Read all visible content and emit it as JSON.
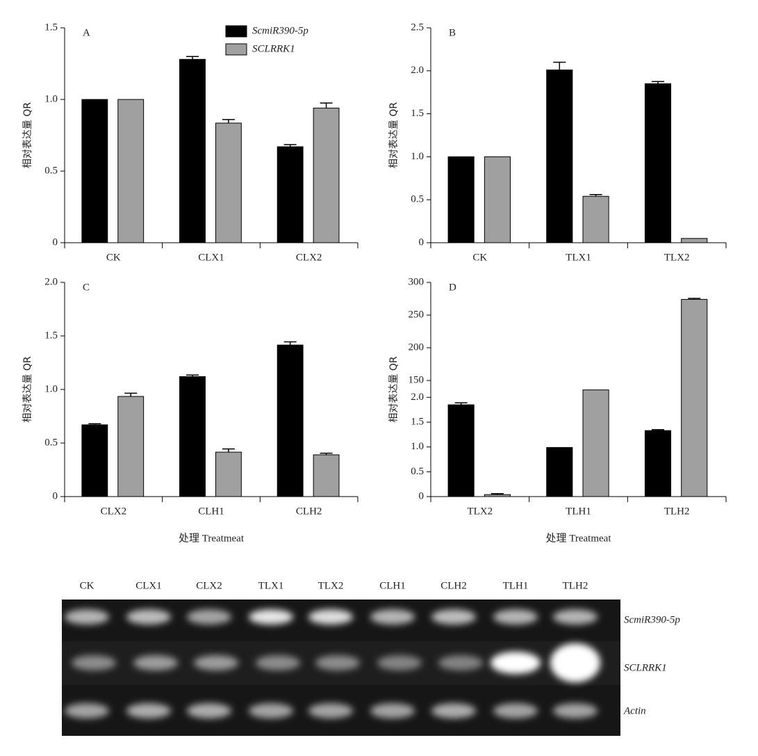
{
  "chart_data": [
    {
      "type": "bar",
      "panel": "A",
      "ylabel": "相对表达量 QR",
      "categories": [
        "CK",
        "CLX1",
        "CLX2"
      ],
      "series": [
        {
          "name": "ScmiR390-5p",
          "color": "#000000",
          "values": [
            1.0,
            1.28,
            0.67
          ],
          "errors": [
            null,
            0.02,
            0.015
          ]
        },
        {
          "name": "SCLRRK1",
          "color": "#a0a0a0",
          "values": [
            1.0,
            0.835,
            0.94
          ],
          "errors": [
            null,
            0.025,
            0.035
          ]
        }
      ],
      "ylim": [
        0,
        1.5
      ],
      "yticks": [
        0,
        {
          "value": 0.5,
          "label": "0.5"
        },
        {
          "value": 1,
          "label": "1.0"
        },
        {
          "value": 1.5,
          "label": "1.5"
        }
      ]
    },
    {
      "type": "bar",
      "panel": "B",
      "ylabel": "相对表达量 QR",
      "categories": [
        "CK",
        "TLX1",
        "TLX2"
      ],
      "series": [
        {
          "color": "#000000",
          "values": [
            1.0,
            2.01,
            1.85
          ],
          "errors": [
            null,
            0.09,
            0.025
          ]
        },
        {
          "color": "#a0a0a0",
          "values": [
            1.0,
            0.54,
            0.05
          ],
          "errors": [
            null,
            0.02,
            null
          ]
        }
      ],
      "ylim": [
        0,
        2.5
      ],
      "yticks": [
        0,
        {
          "value": 0.5,
          "label": "0.5"
        },
        {
          "value": 1,
          "label": "1.0"
        },
        {
          "value": 1.5,
          "label": "1.5"
        },
        {
          "value": 2,
          "label": "2.0"
        },
        {
          "value": 2.5,
          "label": "2.5"
        }
      ]
    },
    {
      "type": "bar",
      "panel": "C",
      "ylabel": "相对表达量 QR",
      "xlabel": "处理 Treatmeat",
      "categories": [
        "CLX2",
        "CLH1",
        "CLH2"
      ],
      "series": [
        {
          "color": "#000000",
          "values": [
            0.67,
            1.12,
            1.415
          ],
          "errors": [
            0.01,
            0.015,
            0.03
          ]
        },
        {
          "color": "#a0a0a0",
          "values": [
            0.935,
            0.415,
            0.39
          ],
          "errors": [
            0.03,
            0.03,
            0.015
          ]
        }
      ],
      "ylim": [
        0,
        2
      ],
      "yticks": [
        0,
        {
          "value": 0.5,
          "label": "0.5"
        },
        {
          "value": 1,
          "label": "1.0"
        },
        {
          "value": 1.5,
          "label": "1.5"
        },
        {
          "value": 2,
          "label": "2.0"
        }
      ]
    },
    {
      "type": "bar",
      "panel": "D",
      "ylabel": "相对表达量 QR",
      "xlabel": "处理 Treatmeat",
      "categories": [
        "TLX2",
        "TLH1",
        "TLH2"
      ],
      "series": [
        {
          "color": "#000000",
          "values": [
            1.85,
            0.99,
            1.33
          ],
          "errors": [
            0.04,
            null,
            0.02
          ]
        },
        {
          "color": "#a0a0a0",
          "values": [
            0.04,
            2.15,
            274
          ],
          "errors": [
            0.02,
            null,
            1.5
          ]
        }
      ],
      "ysegments": [
        {
          "ylim": [
            0,
            2.34
          ],
          "yticks": [
            0,
            {
              "value": 0.5,
              "label": "0.5"
            },
            {
              "value": 1,
              "label": "1.0"
            },
            {
              "value": 1.5,
              "label": "1.5"
            },
            {
              "value": 2,
              "label": "2.0"
            }
          ]
        },
        {
          "ylim": [
            150,
            300
          ],
          "yticks": [
            150,
            200,
            250,
            300
          ]
        }
      ]
    }
  ],
  "gel": {
    "lanes": [
      "CK",
      "CLX1",
      "CLX2",
      "TLX1",
      "TLX2",
      "CLH1",
      "CLH2",
      "TLH1",
      "TLH2"
    ],
    "rows": [
      "ScmiR390-5p",
      "SCLRRK1",
      "Actin"
    ]
  }
}
